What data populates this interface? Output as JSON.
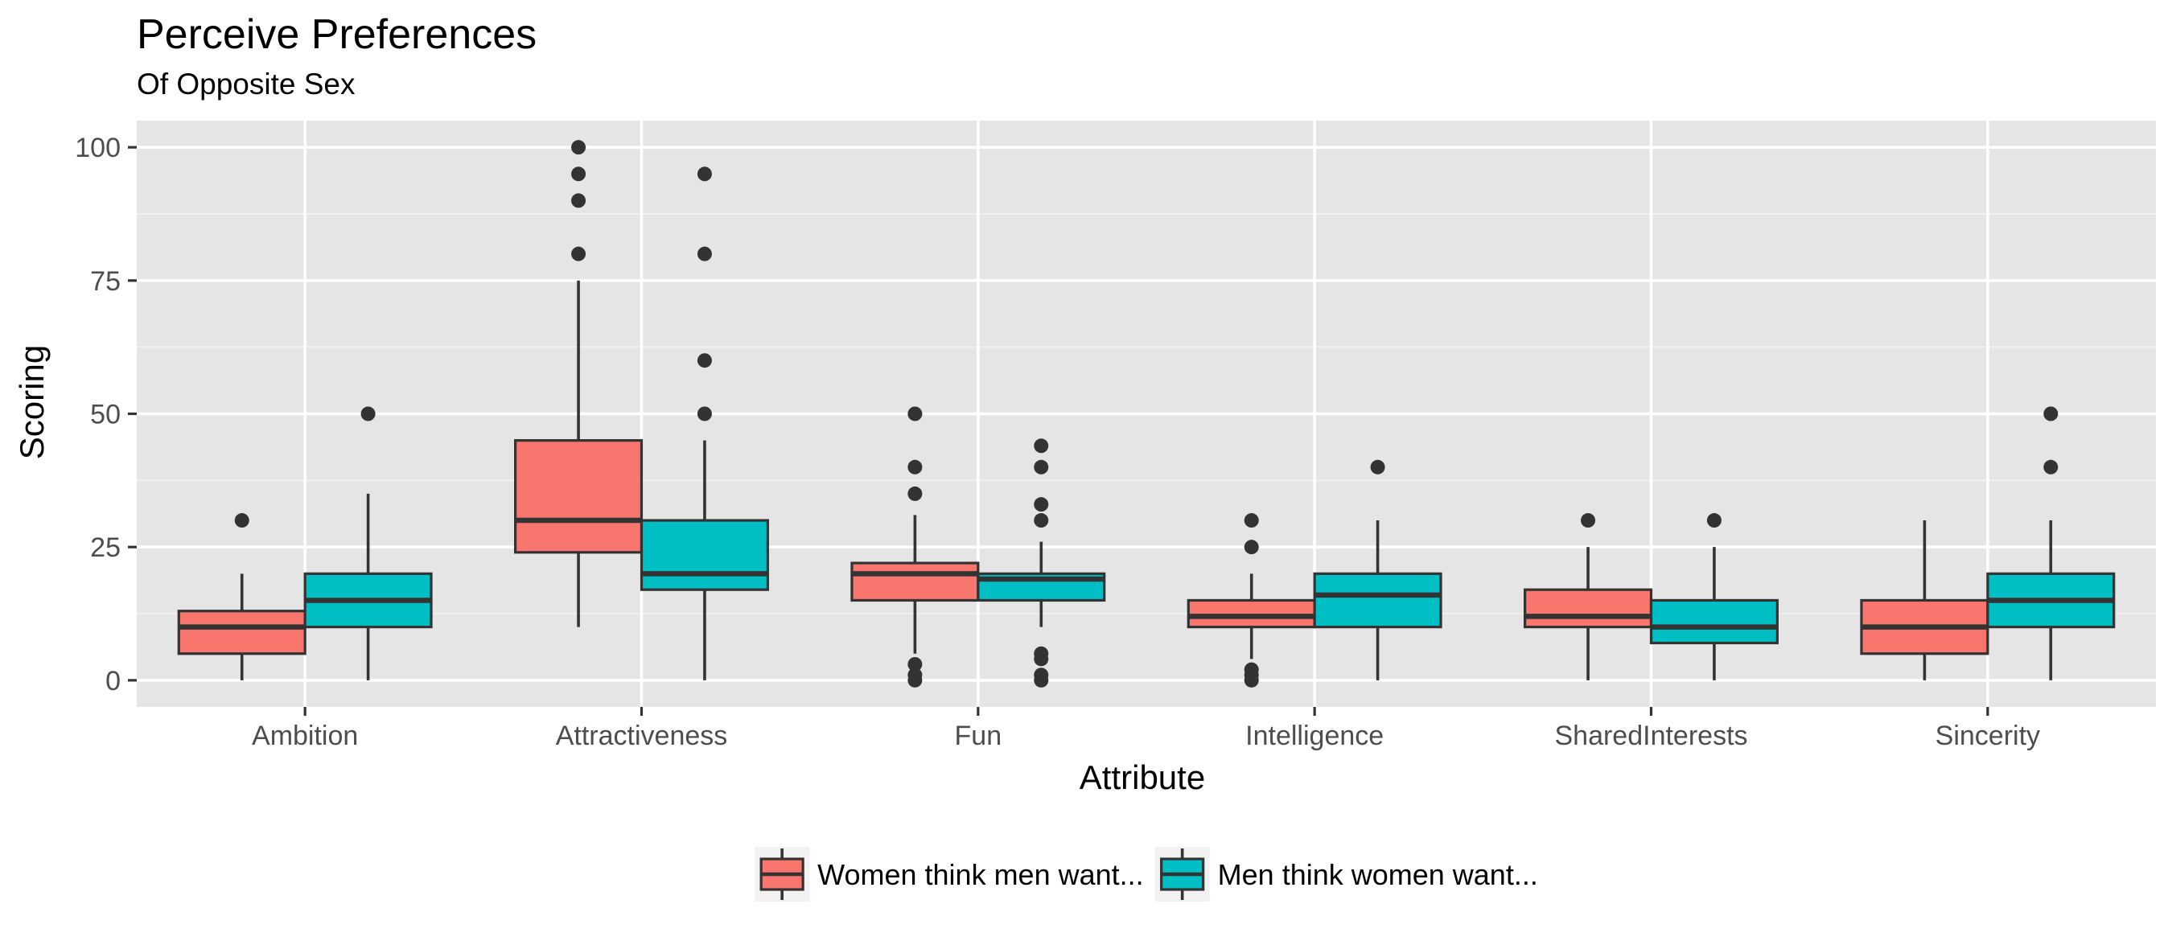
{
  "chart_data": {
    "type": "boxplot",
    "title": "Perceive Preferences",
    "subtitle": "Of Opposite Sex",
    "xlabel": "Attribute",
    "ylabel": "Scoring",
    "ylim": [
      -5,
      105
    ],
    "yticks": [
      0,
      25,
      50,
      75,
      100
    ],
    "grid": true,
    "legend_position": "bottom",
    "categories": [
      "Ambition",
      "Attractiveness",
      "Fun",
      "Intelligence",
      "SharedInterests",
      "Sincerity"
    ],
    "series": [
      {
        "name": "Women think men want...",
        "color": "#F8766D",
        "boxes": [
          {
            "min": 0,
            "q1": 5,
            "median": 10,
            "q3": 13,
            "max": 20,
            "outliers": [
              30
            ]
          },
          {
            "min": 10,
            "q1": 24,
            "median": 30,
            "q3": 45,
            "max": 75,
            "outliers": [
              80,
              90,
              95,
              100
            ]
          },
          {
            "min": 5,
            "q1": 15,
            "median": 20,
            "q3": 22,
            "max": 31,
            "outliers": [
              0,
              1,
              3,
              35,
              40,
              50
            ]
          },
          {
            "min": 4,
            "q1": 10,
            "median": 12,
            "q3": 15,
            "max": 20,
            "outliers": [
              0,
              1,
              2,
              25,
              30
            ]
          },
          {
            "min": 0,
            "q1": 10,
            "median": 12,
            "q3": 17,
            "max": 25,
            "outliers": [
              30
            ]
          },
          {
            "min": 0,
            "q1": 5,
            "median": 10,
            "q3": 15,
            "max": 30,
            "outliers": []
          }
        ]
      },
      {
        "name": "Men think women want...",
        "color": "#00BFC4",
        "boxes": [
          {
            "min": 0,
            "q1": 10,
            "median": 15,
            "q3": 20,
            "max": 35,
            "outliers": [
              50
            ]
          },
          {
            "min": 0,
            "q1": 17,
            "median": 20,
            "q3": 30,
            "max": 45,
            "outliers": [
              50,
              60,
              80,
              95
            ]
          },
          {
            "min": 10,
            "q1": 15,
            "median": 19,
            "q3": 20,
            "max": 26,
            "outliers": [
              0,
              1,
              4,
              5,
              30,
              33,
              40,
              44
            ]
          },
          {
            "min": 0,
            "q1": 10,
            "median": 16,
            "q3": 20,
            "max": 30,
            "outliers": [
              40
            ]
          },
          {
            "min": 0,
            "q1": 7,
            "median": 10,
            "q3": 15,
            "max": 25,
            "outliers": [
              30
            ]
          },
          {
            "min": 0,
            "q1": 10,
            "median": 15,
            "q3": 20,
            "max": 30,
            "outliers": [
              40,
              50
            ]
          }
        ]
      }
    ]
  }
}
